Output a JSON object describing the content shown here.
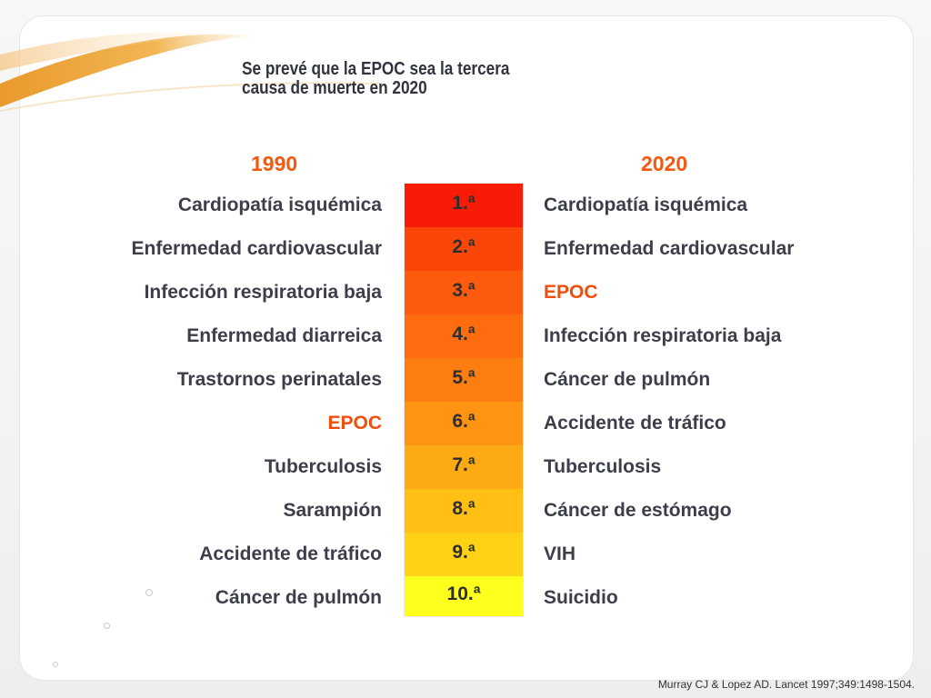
{
  "slide": {
    "title_lines": [
      "Se prevé que la EPOC sea la tercera",
      "causa de muerte en 2020"
    ],
    "year_left": "1990",
    "year_right": "2020",
    "accent_color": "#f5580f",
    "ranks": [
      {
        "label": "1.ª",
        "color": "#f81c08"
      },
      {
        "label": "2.ª",
        "color": "#fb460a"
      },
      {
        "label": "3.ª",
        "color": "#fc5a0c"
      },
      {
        "label": "4.ª",
        "color": "#fd6c0e"
      },
      {
        "label": "5.ª",
        "color": "#fd7e10"
      },
      {
        "label": "6.ª",
        "color": "#fe9412"
      },
      {
        "label": "7.ª",
        "color": "#feaa14"
      },
      {
        "label": "8.ª",
        "color": "#ffbf15"
      },
      {
        "label": "9.ª",
        "color": "#ffd216"
      },
      {
        "label": "10.ª",
        "color": "#ffff1e"
      }
    ],
    "causes_1990": [
      {
        "text": "Cardiopatía isquémica",
        "highlight": false
      },
      {
        "text": "Enfermedad cardiovascular",
        "highlight": false
      },
      {
        "text": "Infección respiratoria baja",
        "highlight": false
      },
      {
        "text": "Enfermedad diarreica",
        "highlight": false
      },
      {
        "text": "Trastornos perinatales",
        "highlight": false
      },
      {
        "text": "EPOC",
        "highlight": true
      },
      {
        "text": "Tuberculosis",
        "highlight": false
      },
      {
        "text": "Sarampión",
        "highlight": false
      },
      {
        "text": "Accidente de tráfico",
        "highlight": false
      },
      {
        "text": "Cáncer de pulmón",
        "highlight": false
      }
    ],
    "causes_2020": [
      {
        "text": "Cardiopatía isquémica",
        "highlight": false
      },
      {
        "text": "Enfermedad cardiovascular",
        "highlight": false
      },
      {
        "text": "EPOC",
        "highlight": true
      },
      {
        "text": "Infección respiratoria baja",
        "highlight": false
      },
      {
        "text": "Cáncer de pulmón",
        "highlight": false
      },
      {
        "text": "Accidente de tráfico",
        "highlight": false
      },
      {
        "text": "Tuberculosis",
        "highlight": false
      },
      {
        "text": "Cáncer de estómago",
        "highlight": false
      },
      {
        "text": "VIH",
        "highlight": false
      },
      {
        "text": "Suicidio",
        "highlight": false
      }
    ],
    "citation": "Murray CJ & Lopez AD. Lancet 1997;349:1498-1504."
  }
}
